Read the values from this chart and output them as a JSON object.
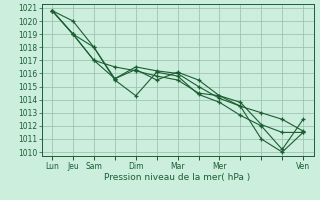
{
  "xlabel": "Pression niveau de la mer( hPa )",
  "bg_color": "#cceedd",
  "grid_color": "#99bbaa",
  "line_color": "#1a5e32",
  "ylim": [
    1010,
    1021
  ],
  "yticks": [
    1010,
    1011,
    1012,
    1013,
    1014,
    1015,
    1016,
    1017,
    1018,
    1019,
    1020,
    1021
  ],
  "xtick_labels": [
    "Lun",
    "Jeu",
    "Sam",
    "",
    "Dim",
    "",
    "Mar",
    "",
    "Mer",
    "",
    "",
    "",
    "Ven"
  ],
  "xtick_positions": [
    0,
    1,
    2,
    3,
    4,
    5,
    6,
    7,
    8,
    9,
    10,
    11,
    12
  ],
  "series": [
    [
      1020.8,
      1020.0,
      1018.0,
      1015.6,
      1016.3,
      1015.5,
      1016.1,
      1015.5,
      1014.3,
      1013.8,
      1012.1,
      1011.5,
      1011.5
    ],
    [
      1020.8,
      1019.0,
      1018.0,
      1015.5,
      1014.3,
      1016.1,
      1015.8,
      1014.4,
      1013.8,
      1012.8,
      1012.0,
      1010.2,
      1012.5
    ],
    [
      1020.8,
      1019.0,
      1017.0,
      1015.6,
      1016.5,
      1016.2,
      1016.0,
      1015.0,
      1014.1,
      1013.5,
      1011.0,
      1010.0,
      1011.5
    ],
    [
      1020.8,
      1019.0,
      1017.0,
      1016.5,
      1016.2,
      1015.8,
      1015.5,
      1014.5,
      1014.3,
      1013.5,
      1013.0,
      1012.5,
      1011.6
    ]
  ]
}
